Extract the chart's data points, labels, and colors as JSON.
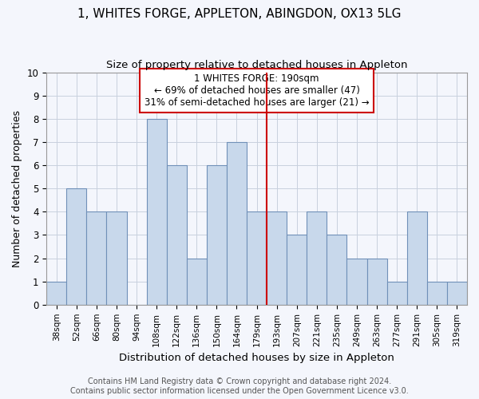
{
  "title": "1, WHITES FORGE, APPLETON, ABINGDON, OX13 5LG",
  "subtitle": "Size of property relative to detached houses in Appleton",
  "xlabel": "Distribution of detached houses by size in Appleton",
  "ylabel": "Number of detached properties",
  "categories": [
    "38sqm",
    "52sqm",
    "66sqm",
    "80sqm",
    "94sqm",
    "108sqm",
    "122sqm",
    "136sqm",
    "150sqm",
    "164sqm",
    "179sqm",
    "193sqm",
    "207sqm",
    "221sqm",
    "235sqm",
    "249sqm",
    "263sqm",
    "277sqm",
    "291sqm",
    "305sqm",
    "319sqm"
  ],
  "values": [
    1,
    5,
    4,
    4,
    0,
    8,
    6,
    2,
    6,
    7,
    4,
    4,
    3,
    4,
    3,
    2,
    2,
    1,
    4,
    1,
    1
  ],
  "bar_color": "#c8d8eb",
  "bar_edge_color": "#7090b8",
  "vline_x_index": 11,
  "vline_color": "#cc0000",
  "annotation_title": "1 WHITES FORGE: 190sqm",
  "annotation_line2": "← 69% of detached houses are smaller (47)",
  "annotation_line3": "31% of semi-detached houses are larger (21) →",
  "annotation_box_color": "#cc0000",
  "ylim": [
    0,
    10
  ],
  "yticks": [
    0,
    1,
    2,
    3,
    4,
    5,
    6,
    7,
    8,
    9,
    10
  ],
  "footer_line1": "Contains HM Land Registry data © Crown copyright and database right 2024.",
  "footer_line2": "Contains public sector information licensed under the Open Government Licence v3.0.",
  "bg_color": "#f4f6fc",
  "grid_color": "#c8d0de",
  "title_fontsize": 11,
  "subtitle_fontsize": 9.5,
  "axis_label_fontsize": 9,
  "tick_fontsize": 7.5,
  "annotation_fontsize": 8.5,
  "footer_fontsize": 7
}
